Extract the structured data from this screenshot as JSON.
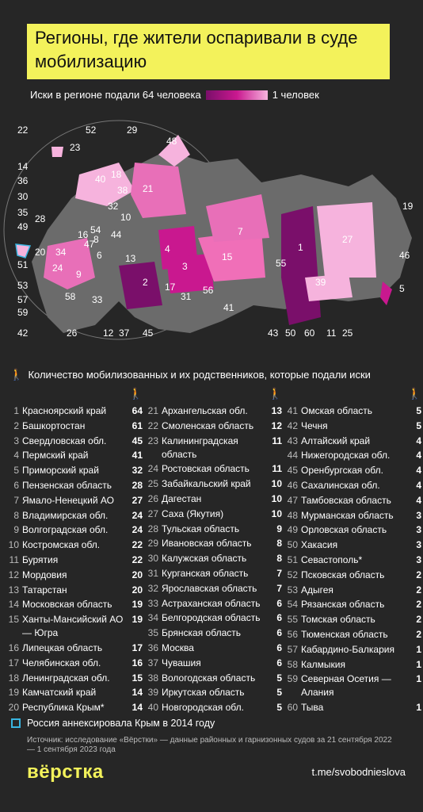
{
  "title": "Регионы, где жители оспаривали в суде мобилизацию",
  "legend": {
    "max_label": "Иски в регионе подали 64 человека",
    "min_label": "1 человек",
    "color_max": "#7a0f6a",
    "color_min": "#f6b3dd"
  },
  "map_labels": [
    "22",
    "52",
    "29",
    "23",
    "48",
    "14",
    "36",
    "30",
    "35",
    "28",
    "49",
    "20",
    "34",
    "51",
    "53",
    "57",
    "59",
    "42",
    "40",
    "18",
    "38",
    "21",
    "32",
    "10",
    "54",
    "16",
    "47",
    "6",
    "44",
    "13",
    "24",
    "9",
    "58",
    "33",
    "26",
    "12",
    "37",
    "45",
    "4",
    "3",
    "2",
    "17",
    "31",
    "56",
    "41",
    "15",
    "7",
    "55",
    "43",
    "50",
    "1",
    "60",
    "11",
    "25",
    "39",
    "27",
    "19",
    "46",
    "5",
    "8"
  ],
  "section_header": "Количество мобилизованных и их родственников, которые подали иски",
  "columns": [
    [
      [
        "1",
        "Красноярский край",
        "64"
      ],
      [
        "2",
        "Башкортостан",
        "61"
      ],
      [
        "3",
        "Свердловская обл.",
        "45"
      ],
      [
        "4",
        "Пермский край",
        "41"
      ],
      [
        "5",
        "Приморский край",
        "32"
      ],
      [
        "6",
        "Пензенская область",
        "28"
      ],
      [
        "7",
        "Ямало-Ненецкий АО",
        "27"
      ],
      [
        "8",
        "Владимирская обл.",
        "24"
      ],
      [
        "9",
        "Волгоградская обл.",
        "24"
      ],
      [
        "10",
        "Костромская обл.",
        "22"
      ],
      [
        "11",
        "Бурятия",
        "22"
      ],
      [
        "12",
        "Мордовия",
        "20"
      ],
      [
        "13",
        "Татарстан",
        "20"
      ],
      [
        "14",
        "Московская область",
        "19"
      ],
      [
        "15",
        "Ханты-Мансийский АО — Югра",
        "19"
      ],
      [
        "16",
        "Липецкая область",
        "17"
      ],
      [
        "17",
        "Челябинская обл.",
        "16"
      ],
      [
        "18",
        "Ленинградская обл.",
        "15"
      ],
      [
        "19",
        "Камчатский край",
        "14"
      ],
      [
        "20",
        "Республика Крым*",
        "14"
      ]
    ],
    [
      [
        "21",
        "Архангельская обл.",
        "13"
      ],
      [
        "22",
        "Смоленская область",
        "12"
      ],
      [
        "23",
        "Калининградская область",
        "11"
      ],
      [
        "24",
        "Ростовская область",
        "11"
      ],
      [
        "25",
        "Забайкальский край",
        "10"
      ],
      [
        "26",
        "Дагестан",
        "10"
      ],
      [
        "27",
        "Саха (Якутия)",
        "10"
      ],
      [
        "28",
        "Тульская область",
        "9"
      ],
      [
        "29",
        "Ивановская область",
        "8"
      ],
      [
        "30",
        "Калужская область",
        "8"
      ],
      [
        "31",
        "Курганская область",
        "7"
      ],
      [
        "32",
        "Ярославская область",
        "7"
      ],
      [
        "33",
        "Астраханская область",
        "6"
      ],
      [
        "34",
        "Белгородская область",
        "6"
      ],
      [
        "35",
        "Брянская область",
        "6"
      ],
      [
        "36",
        "Москва",
        "6"
      ],
      [
        "37",
        "Чувашия",
        "6"
      ],
      [
        "38",
        "Вологодская область",
        "5"
      ],
      [
        "39",
        "Иркутская область",
        "5"
      ],
      [
        "40",
        "Новгородская обл.",
        "5"
      ]
    ],
    [
      [
        "41",
        "Омская область",
        "5"
      ],
      [
        "42",
        "Чечня",
        "5"
      ],
      [
        "43",
        "Алтайский край",
        "4"
      ],
      [
        "44",
        "Нижегородская обл.",
        "4"
      ],
      [
        "45",
        "Оренбургская обл.",
        "4"
      ],
      [
        "46",
        "Сахалинская обл.",
        "4"
      ],
      [
        "47",
        "Тамбовская область",
        "4"
      ],
      [
        "48",
        "Мурманская область",
        "3"
      ],
      [
        "49",
        "Орловская область",
        "3"
      ],
      [
        "50",
        "Хакасия",
        "3"
      ],
      [
        "51",
        "Севастополь*",
        "3"
      ],
      [
        "52",
        "Псковская область",
        "2"
      ],
      [
        "53",
        "Адыгея",
        "2"
      ],
      [
        "54",
        "Рязанская область",
        "2"
      ],
      [
        "55",
        "Томская область",
        "2"
      ],
      [
        "56",
        "Тюменская область",
        "2"
      ],
      [
        "57",
        "Кабардино-Балкария",
        "1"
      ],
      [
        "58",
        "Калмыкия",
        "1"
      ],
      [
        "59",
        "Северная Осетия — Алания",
        "1"
      ],
      [
        "60",
        "Тыва",
        "1"
      ]
    ]
  ],
  "note": "Россия аннексировала Крым в 2014 году",
  "source": "Источник: исследование «Вёрстки»  — данные районных и гарнизонных судов за 21 сентября 2022 — 1 сентября 2023 года",
  "logo": "вёрстка",
  "url": "t.me/svobodnieslova"
}
